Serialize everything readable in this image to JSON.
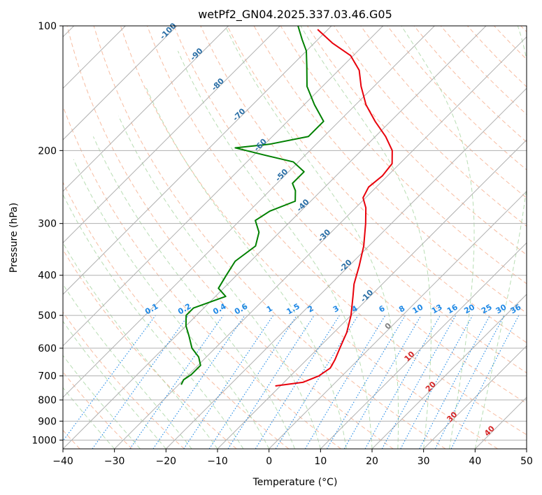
{
  "chart_data": {
    "type": "line",
    "subtype": "skew-T log-P diagram",
    "title": "wetPf2_GN04.2025.337.03.46.G05",
    "xlabel": "Temperature (°C)",
    "ylabel": "Pressure (hPa)",
    "xlim": [
      -40,
      50
    ],
    "ylim": [
      1050,
      100
    ],
    "x_ticks": [
      -40,
      -30,
      -20,
      -10,
      0,
      10,
      20,
      30,
      40,
      50
    ],
    "y_ticks": [
      100,
      200,
      300,
      400,
      500,
      600,
      700,
      800,
      900,
      1000
    ],
    "grid": true,
    "series": [
      {
        "name": "Temperature",
        "color": "#e8000b",
        "points": [
          {
            "p": 740,
            "t": -11.0
          },
          {
            "p": 725,
            "t": -6.3
          },
          {
            "p": 700,
            "t": -4.5
          },
          {
            "p": 670,
            "t": -3.8
          },
          {
            "p": 640,
            "t": -4.5
          },
          {
            "p": 600,
            "t": -5.8
          },
          {
            "p": 550,
            "t": -7.5
          },
          {
            "p": 500,
            "t": -10.0
          },
          {
            "p": 450,
            "t": -13.3
          },
          {
            "p": 420,
            "t": -15.5
          },
          {
            "p": 380,
            "t": -18.0
          },
          {
            "p": 340,
            "t": -21.0
          },
          {
            "p": 300,
            "t": -25.0
          },
          {
            "p": 275,
            "t": -28.0
          },
          {
            "p": 260,
            "t": -30.5
          },
          {
            "p": 245,
            "t": -31.5
          },
          {
            "p": 230,
            "t": -31.0
          },
          {
            "p": 215,
            "t": -31.5
          },
          {
            "p": 200,
            "t": -34.0
          },
          {
            "p": 185,
            "t": -38.0
          },
          {
            "p": 170,
            "t": -43.0
          },
          {
            "p": 155,
            "t": -48.0
          },
          {
            "p": 140,
            "t": -52.5
          },
          {
            "p": 128,
            "t": -56.0
          },
          {
            "p": 118,
            "t": -60.5
          },
          {
            "p": 110,
            "t": -66.5
          },
          {
            "p": 102,
            "t": -72.0
          }
        ]
      },
      {
        "name": "Dewpoint",
        "color": "#008000",
        "points": [
          {
            "p": 735,
            "t": -29.5
          },
          {
            "p": 715,
            "t": -30.0
          },
          {
            "p": 695,
            "t": -29.5
          },
          {
            "p": 660,
            "t": -29.5
          },
          {
            "p": 630,
            "t": -31.5
          },
          {
            "p": 600,
            "t": -34.5
          },
          {
            "p": 560,
            "t": -37.5
          },
          {
            "p": 530,
            "t": -40.0
          },
          {
            "p": 500,
            "t": -42.0
          },
          {
            "p": 480,
            "t": -42.0
          },
          {
            "p": 450,
            "t": -38.0
          },
          {
            "p": 430,
            "t": -41.0
          },
          {
            "p": 400,
            "t": -42.0
          },
          {
            "p": 370,
            "t": -43.0
          },
          {
            "p": 340,
            "t": -42.0
          },
          {
            "p": 315,
            "t": -44.0
          },
          {
            "p": 295,
            "t": -47.0
          },
          {
            "p": 280,
            "t": -46.0
          },
          {
            "p": 265,
            "t": -43.0
          },
          {
            "p": 250,
            "t": -45.0
          },
          {
            "p": 240,
            "t": -47.0
          },
          {
            "p": 225,
            "t": -47.0
          },
          {
            "p": 213,
            "t": -51.0
          },
          {
            "p": 205,
            "t": -58.0
          },
          {
            "p": 197,
            "t": -65.0
          },
          {
            "p": 193,
            "t": -59.0
          },
          {
            "p": 185,
            "t": -53.0
          },
          {
            "p": 170,
            "t": -53.0
          },
          {
            "p": 155,
            "t": -58.0
          },
          {
            "p": 140,
            "t": -63.0
          },
          {
            "p": 125,
            "t": -67.0
          },
          {
            "p": 115,
            "t": -70.0
          },
          {
            "p": 108,
            "t": -73.0
          },
          {
            "p": 100,
            "t": -76.5
          }
        ]
      }
    ],
    "mixing_ratio_labels": [
      "0.1",
      "0.2",
      "0.4",
      "0.6",
      "1",
      "1.5",
      "2",
      "3",
      "4",
      "6",
      "8",
      "10",
      "13",
      "16",
      "20",
      "25",
      "30",
      "36"
    ],
    "isotherm_labels": [
      "-100",
      "-90",
      "-80",
      "-70",
      "-60",
      "-50",
      "-40",
      "-30",
      "-20",
      "-10",
      "0",
      "10",
      "20",
      "30",
      "40"
    ],
    "colors": {
      "isotherm": "#2b6fa6",
      "mixing_ratio": "#1e88e5",
      "zero_isotherm": "#808080",
      "warm_isotherm": "#d62728",
      "dry_adiabat": "#f4a582",
      "moist_adiabat": "#a6d4a0",
      "grid": "#b0b0b0"
    }
  }
}
